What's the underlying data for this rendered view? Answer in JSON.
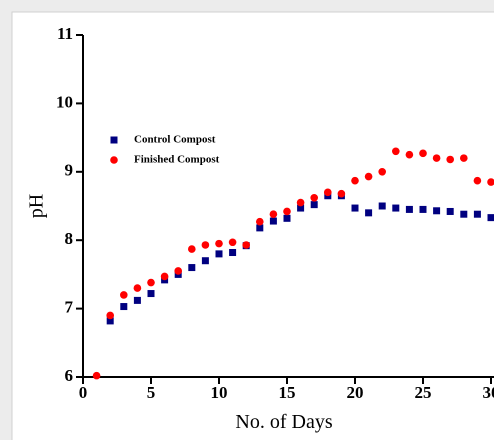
{
  "chart_data": {
    "type": "scatter",
    "xlabel": "No. of Days",
    "ylabel": "pH",
    "xlim": [
      0,
      32
    ],
    "ylim": [
      6,
      11
    ],
    "xticks": [
      0,
      5,
      10,
      15,
      20,
      25,
      30
    ],
    "yticks": [
      6,
      7,
      8,
      9,
      10,
      11
    ],
    "legend": "upper left",
    "series": [
      {
        "name": "Control Compost",
        "color": "#000080",
        "marker": "square",
        "x": [
          2,
          3,
          4,
          5,
          6,
          7,
          8,
          9,
          10,
          11,
          12,
          13,
          14,
          15,
          16,
          17,
          18,
          19,
          20,
          21,
          22,
          23,
          24,
          25,
          26,
          27,
          28,
          29,
          30
        ],
        "values": [
          6.82,
          7.03,
          7.12,
          7.22,
          7.42,
          7.5,
          7.6,
          7.7,
          7.8,
          7.82,
          7.92,
          8.18,
          8.28,
          8.32,
          8.47,
          8.52,
          8.65,
          8.65,
          8.47,
          8.4,
          8.5,
          8.47,
          8.45,
          8.45,
          8.43,
          8.42,
          8.38,
          8.38,
          8.33
        ]
      },
      {
        "name": "Finished Compost",
        "color": "#ff0000",
        "marker": "circle",
        "x": [
          1,
          2,
          3,
          4,
          5,
          6,
          7,
          8,
          9,
          10,
          11,
          12,
          13,
          14,
          15,
          16,
          17,
          18,
          19,
          20,
          21,
          22,
          23,
          24,
          25,
          26,
          27,
          28,
          29,
          30
        ],
        "values": [
          6.02,
          6.9,
          7.2,
          7.3,
          7.38,
          7.47,
          7.55,
          7.87,
          7.93,
          7.95,
          7.97,
          7.93,
          8.27,
          8.38,
          8.42,
          8.55,
          8.62,
          8.7,
          8.68,
          8.87,
          8.93,
          9.0,
          9.3,
          9.25,
          9.27,
          9.2,
          9.18,
          9.2,
          8.87,
          8.85
        ]
      }
    ]
  }
}
